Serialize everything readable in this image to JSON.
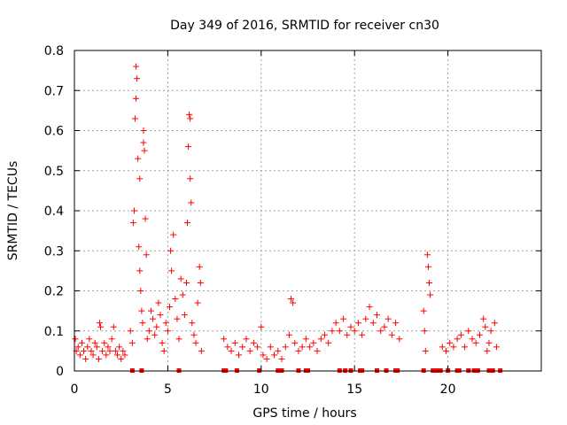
{
  "chart_data": {
    "type": "scatter",
    "title": "Day 349 of 2016, SRMTID for receiver cn30",
    "xlabel": "GPS time / hours",
    "ylabel": "SRMTID / TECUs",
    "xlim": [
      0,
      25
    ],
    "ylim": [
      0,
      0.8
    ],
    "x_ticks": [
      0,
      5,
      10,
      15,
      20
    ],
    "x_tick_labels": [
      "0",
      "5",
      "10",
      "15",
      "20"
    ],
    "y_ticks": [
      0,
      0.1,
      0.2,
      0.3,
      0.4,
      0.5,
      0.6,
      0.7,
      0.8
    ],
    "y_tick_labels": [
      "0",
      "0.1",
      "0.2",
      "0.3",
      "0.4",
      "0.5",
      "0.6",
      "0.7",
      "0.8"
    ],
    "grid": true,
    "marker": "plus",
    "color": "#ff0000",
    "series": [
      {
        "name": "cn30",
        "points": [
          [
            0.05,
            0.08
          ],
          [
            0.1,
            0.05
          ],
          [
            0.2,
            0.06
          ],
          [
            0.3,
            0.04
          ],
          [
            0.4,
            0.07
          ],
          [
            0.5,
            0.05
          ],
          [
            0.6,
            0.03
          ],
          [
            0.7,
            0.06
          ],
          [
            0.8,
            0.08
          ],
          [
            0.9,
            0.05
          ],
          [
            1.0,
            0.04
          ],
          [
            1.1,
            0.07
          ],
          [
            1.2,
            0.06
          ],
          [
            1.3,
            0.03
          ],
          [
            1.35,
            0.12
          ],
          [
            1.4,
            0.11
          ],
          [
            1.5,
            0.05
          ],
          [
            1.6,
            0.07
          ],
          [
            1.7,
            0.04
          ],
          [
            1.8,
            0.06
          ],
          [
            1.9,
            0.05
          ],
          [
            2.0,
            0.08
          ],
          [
            2.1,
            0.11
          ],
          [
            2.2,
            0.05
          ],
          [
            2.3,
            0.04
          ],
          [
            2.4,
            0.06
          ],
          [
            2.5,
            0.03
          ],
          [
            2.6,
            0.05
          ],
          [
            2.7,
            0.04
          ],
          [
            3.0,
            0.1
          ],
          [
            3.1,
            0.07
          ],
          [
            3.15,
            0.37
          ],
          [
            3.2,
            0.4
          ],
          [
            3.25,
            0.63
          ],
          [
            3.3,
            0.68
          ],
          [
            3.3,
            0.76
          ],
          [
            3.35,
            0.73
          ],
          [
            3.4,
            0.53
          ],
          [
            3.45,
            0.31
          ],
          [
            3.5,
            0.25
          ],
          [
            3.5,
            0.48
          ],
          [
            3.55,
            0.2
          ],
          [
            3.6,
            0.15
          ],
          [
            3.65,
            0.12
          ],
          [
            3.7,
            0.57
          ],
          [
            3.7,
            0.6
          ],
          [
            3.75,
            0.55
          ],
          [
            3.8,
            0.38
          ],
          [
            3.85,
            0.29
          ],
          [
            3.9,
            0.08
          ],
          [
            4.0,
            0.1
          ],
          [
            4.1,
            0.15
          ],
          [
            4.2,
            0.13
          ],
          [
            4.3,
            0.09
          ],
          [
            4.4,
            0.11
          ],
          [
            4.5,
            0.17
          ],
          [
            4.6,
            0.14
          ],
          [
            4.7,
            0.07
          ],
          [
            4.8,
            0.05
          ],
          [
            4.9,
            0.12
          ],
          [
            5.0,
            0.1
          ],
          [
            5.1,
            0.16
          ],
          [
            5.15,
            0.3
          ],
          [
            5.2,
            0.25
          ],
          [
            5.3,
            0.34
          ],
          [
            5.4,
            0.18
          ],
          [
            5.5,
            0.13
          ],
          [
            5.6,
            0.08
          ],
          [
            5.7,
            0.23
          ],
          [
            5.8,
            0.19
          ],
          [
            5.9,
            0.14
          ],
          [
            6.0,
            0.22
          ],
          [
            6.05,
            0.37
          ],
          [
            6.1,
            0.56
          ],
          [
            6.15,
            0.64
          ],
          [
            6.2,
            0.63
          ],
          [
            6.2,
            0.48
          ],
          [
            6.25,
            0.42
          ],
          [
            6.3,
            0.12
          ],
          [
            6.4,
            0.09
          ],
          [
            6.5,
            0.07
          ],
          [
            6.6,
            0.17
          ],
          [
            6.7,
            0.26
          ],
          [
            6.75,
            0.22
          ],
          [
            6.8,
            0.05
          ],
          [
            8.0,
            0.08
          ],
          [
            8.2,
            0.06
          ],
          [
            8.4,
            0.05
          ],
          [
            8.6,
            0.07
          ],
          [
            8.8,
            0.04
          ],
          [
            9.0,
            0.06
          ],
          [
            9.2,
            0.08
          ],
          [
            9.4,
            0.05
          ],
          [
            9.6,
            0.07
          ],
          [
            9.8,
            0.06
          ],
          [
            10.0,
            0.11
          ],
          [
            10.1,
            0.04
          ],
          [
            10.3,
            0.03
          ],
          [
            10.5,
            0.06
          ],
          [
            10.7,
            0.04
          ],
          [
            10.9,
            0.05
          ],
          [
            11.1,
            0.03
          ],
          [
            11.3,
            0.06
          ],
          [
            11.5,
            0.09
          ],
          [
            11.6,
            0.18
          ],
          [
            11.7,
            0.17
          ],
          [
            11.8,
            0.07
          ],
          [
            12.0,
            0.05
          ],
          [
            12.2,
            0.06
          ],
          [
            12.4,
            0.08
          ],
          [
            12.6,
            0.06
          ],
          [
            12.8,
            0.07
          ],
          [
            13.0,
            0.05
          ],
          [
            13.2,
            0.08
          ],
          [
            13.4,
            0.09
          ],
          [
            13.6,
            0.07
          ],
          [
            13.8,
            0.1
          ],
          [
            14.0,
            0.12
          ],
          [
            14.2,
            0.1
          ],
          [
            14.4,
            0.13
          ],
          [
            14.6,
            0.09
          ],
          [
            14.8,
            0.11
          ],
          [
            15.0,
            0.1
          ],
          [
            15.2,
            0.12
          ],
          [
            15.4,
            0.09
          ],
          [
            15.6,
            0.13
          ],
          [
            15.8,
            0.16
          ],
          [
            16.0,
            0.12
          ],
          [
            16.2,
            0.14
          ],
          [
            16.4,
            0.1
          ],
          [
            16.6,
            0.11
          ],
          [
            16.8,
            0.13
          ],
          [
            17.0,
            0.09
          ],
          [
            17.2,
            0.12
          ],
          [
            17.4,
            0.08
          ],
          [
            18.7,
            0.15
          ],
          [
            18.75,
            0.1
          ],
          [
            18.8,
            0.05
          ],
          [
            18.9,
            0.29
          ],
          [
            18.95,
            0.26
          ],
          [
            19.0,
            0.22
          ],
          [
            19.05,
            0.19
          ],
          [
            19.7,
            0.06
          ],
          [
            19.9,
            0.05
          ],
          [
            20.1,
            0.07
          ],
          [
            20.3,
            0.06
          ],
          [
            20.5,
            0.08
          ],
          [
            20.7,
            0.09
          ],
          [
            20.9,
            0.06
          ],
          [
            21.1,
            0.1
          ],
          [
            21.3,
            0.08
          ],
          [
            21.5,
            0.07
          ],
          [
            21.7,
            0.09
          ],
          [
            21.9,
            0.13
          ],
          [
            22.0,
            0.11
          ],
          [
            22.1,
            0.05
          ],
          [
            22.2,
            0.07
          ],
          [
            22.3,
            0.1
          ],
          [
            22.5,
            0.12
          ],
          [
            22.6,
            0.06
          ]
        ]
      }
    ],
    "zero_markers_x": [
      3.1,
      3.6,
      5.6,
      8.0,
      8.1,
      8.7,
      9.9,
      10.9,
      11.1,
      12.0,
      12.4,
      12.5,
      14.2,
      14.5,
      14.8,
      15.3,
      15.4,
      16.2,
      16.7,
      17.2,
      17.3,
      18.7,
      19.2,
      19.4,
      19.6,
      20.0,
      20.5,
      20.6,
      21.1,
      21.4,
      21.6,
      22.2,
      22.4,
      22.8
    ]
  }
}
